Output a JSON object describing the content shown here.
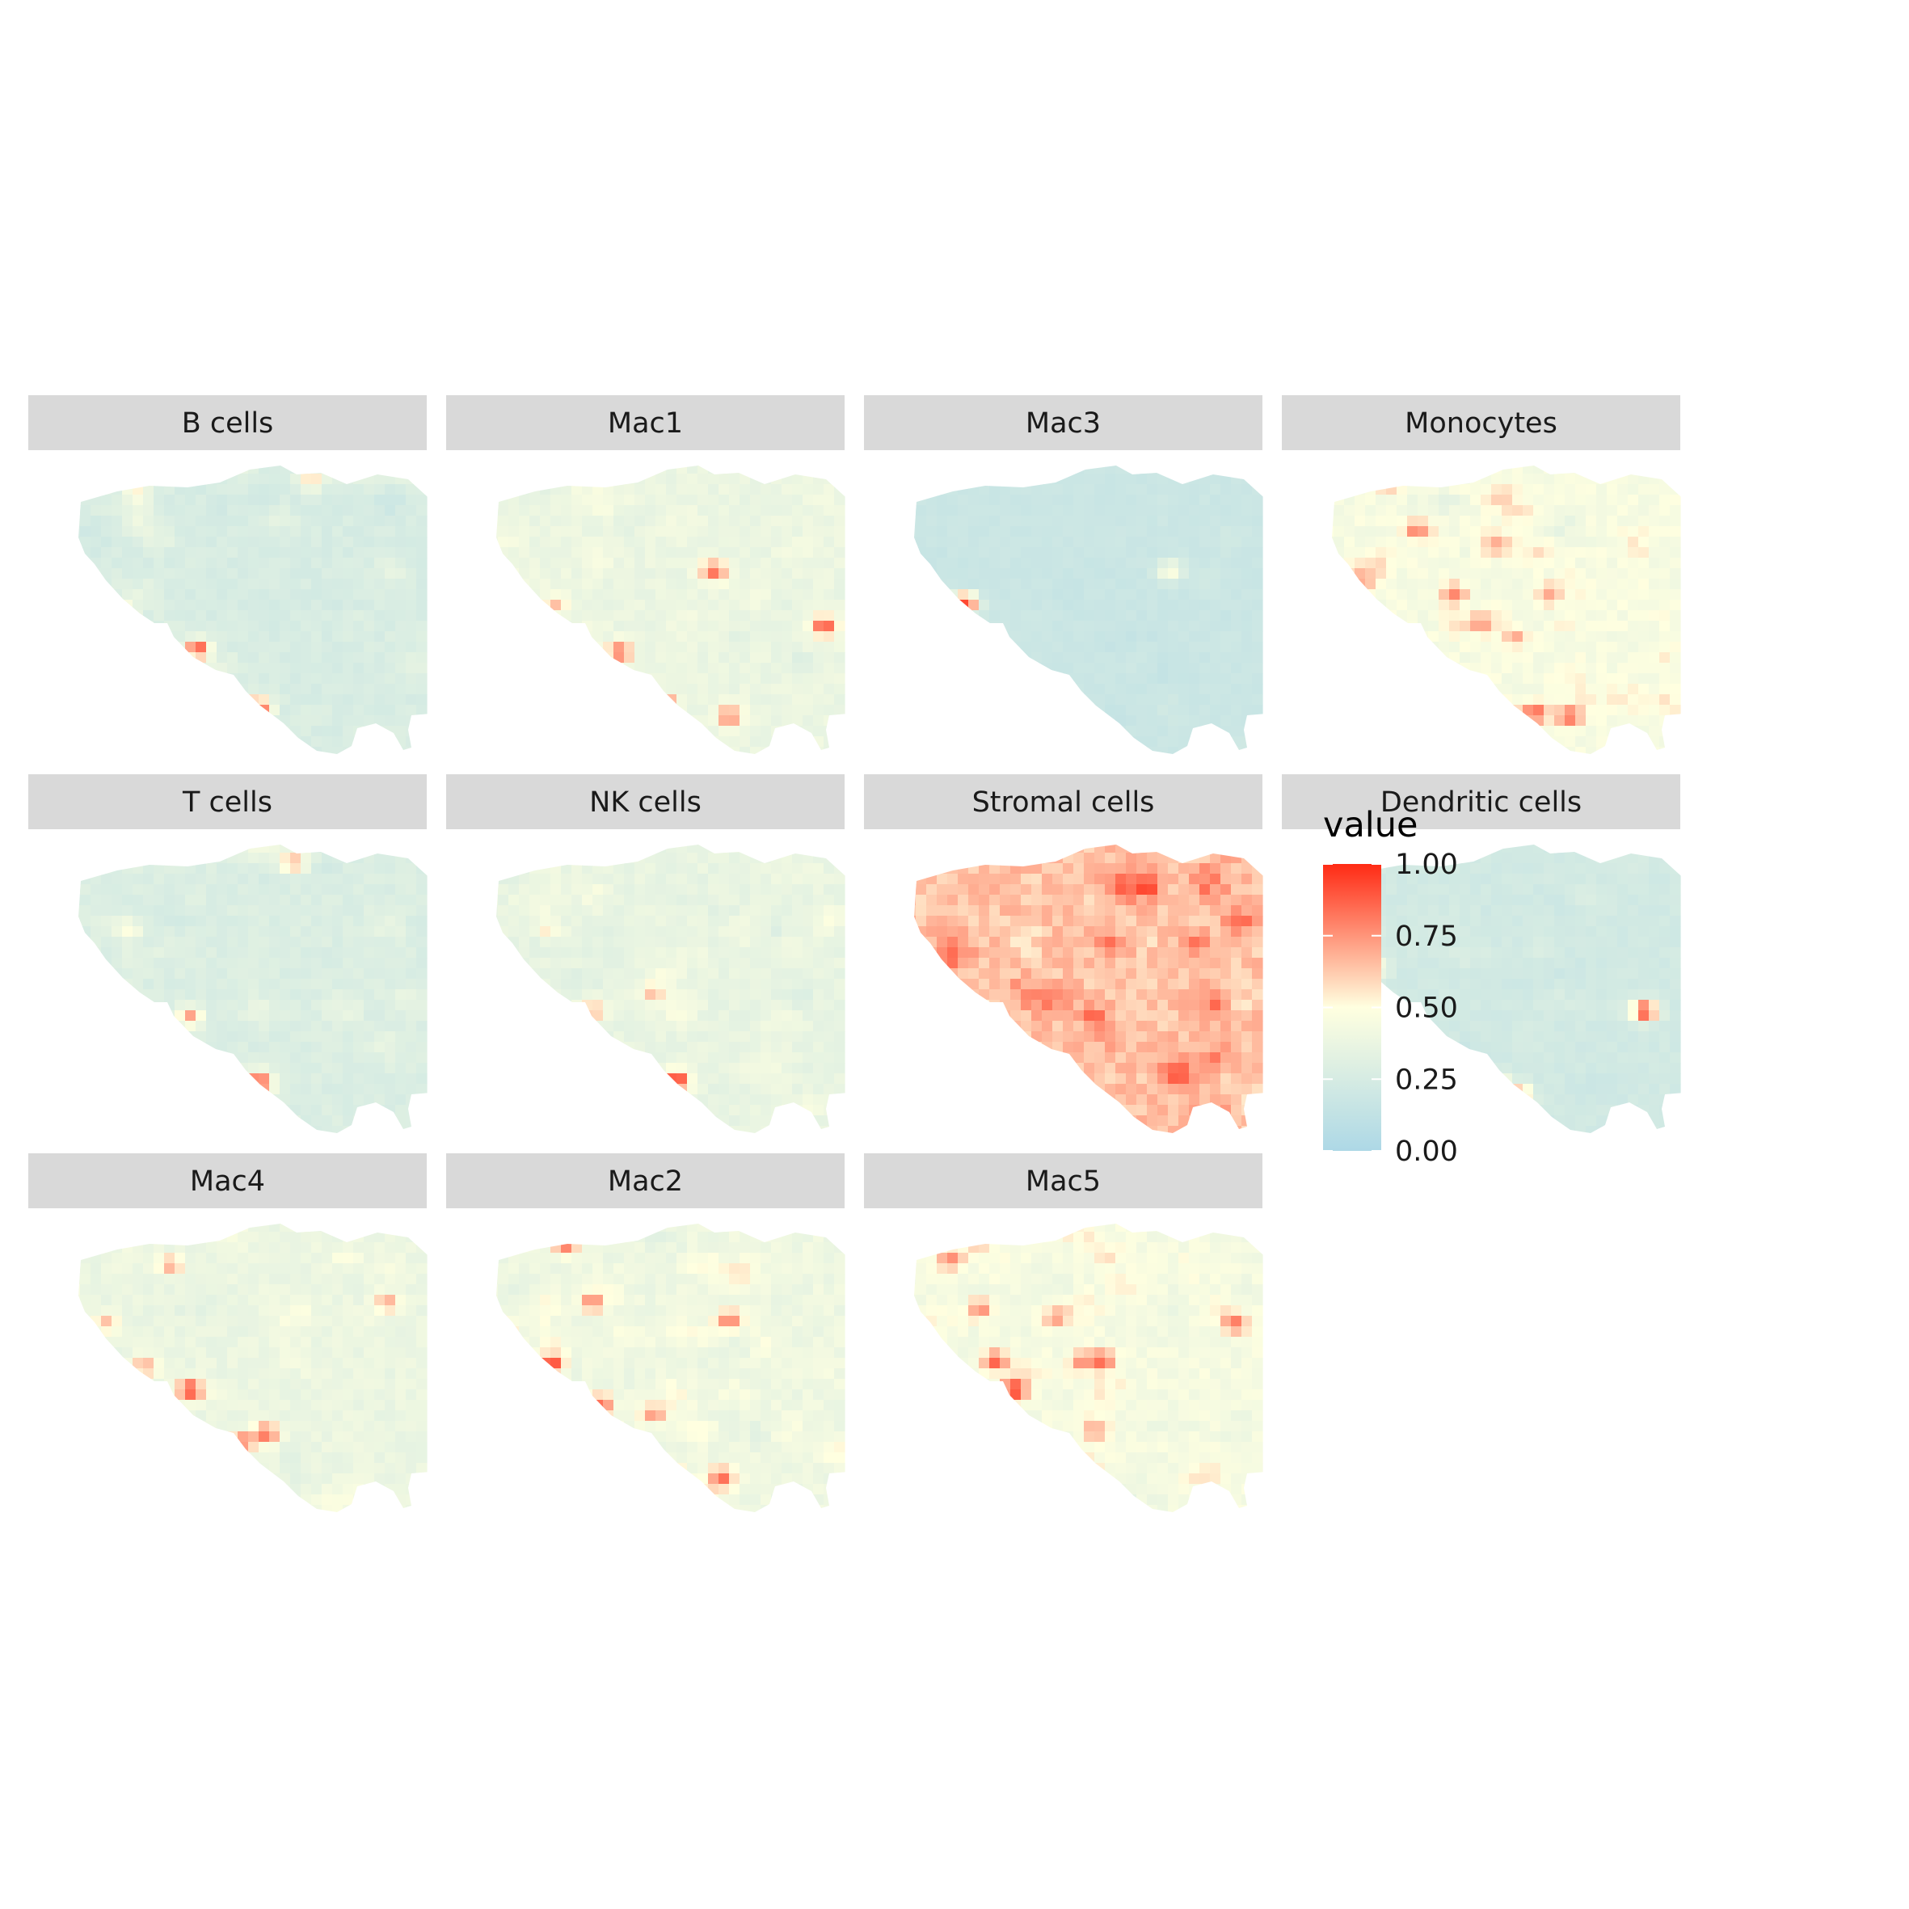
{
  "chart_data": {
    "type": "heatmap",
    "title": "",
    "xlabel": "",
    "ylabel": "",
    "grid": false,
    "legend_position": "right",
    "legend": {
      "title": "value",
      "limits": [
        0,
        1
      ],
      "breaks": [
        "1.00",
        "0.75",
        "0.50",
        "0.25",
        "0.00"
      ],
      "colors": {
        "low": "#add8e6",
        "mid": "#ffffe0",
        "high": "#ff2a14"
      }
    },
    "panels": [
      {
        "name": "B cells",
        "base": 0.26,
        "spread": 0.07,
        "hotspots": [
          [
            0.22,
            0.52,
            0.75
          ],
          [
            0.42,
            0.64,
            0.9
          ],
          [
            0.58,
            0.84,
            0.92
          ],
          [
            0.72,
            0.06,
            0.6
          ],
          [
            0.26,
            0.1,
            0.55
          ]
        ]
      },
      {
        "name": "Mac1",
        "base": 0.38,
        "spread": 0.08,
        "hotspots": [
          [
            0.34,
            0.02,
            0.95
          ],
          [
            0.06,
            0.1,
            0.8
          ],
          [
            0.68,
            0.37,
            0.85
          ],
          [
            0.43,
            0.65,
            0.85
          ],
          [
            0.55,
            0.83,
            0.85
          ],
          [
            0.72,
            0.87,
            0.8
          ],
          [
            0.97,
            0.56,
            0.9
          ],
          [
            0.26,
            0.49,
            0.65
          ]
        ]
      },
      {
        "name": "Mac3",
        "base": 0.18,
        "spread": 0.04,
        "hotspots": [
          [
            0.24,
            0.48,
            0.98
          ],
          [
            0.78,
            0.37,
            0.5
          ]
        ]
      },
      {
        "name": "Monocytes",
        "base": 0.45,
        "spread": 0.1,
        "hotspots": [
          [
            0.25,
            0.05,
            0.98
          ],
          [
            0.58,
            0.9,
            0.95
          ],
          [
            0.64,
            0.86,
            0.88
          ],
          [
            0.73,
            0.87,
            0.85
          ],
          [
            0.33,
            0.23,
            0.8
          ],
          [
            0.43,
            0.45,
            0.78
          ],
          [
            0.5,
            0.55,
            0.75
          ],
          [
            0.18,
            0.4,
            0.72
          ],
          [
            0.59,
            0.6,
            0.7
          ],
          [
            0.54,
            0.28,
            0.7
          ],
          [
            0.68,
            0.45,
            0.7
          ]
        ]
      },
      {
        "name": "T cells",
        "base": 0.28,
        "spread": 0.07,
        "hotspots": [
          [
            0.58,
            0.83,
            0.98
          ],
          [
            0.4,
            0.6,
            0.72
          ],
          [
            0.67,
            0.07,
            0.7
          ],
          [
            0.24,
            0.3,
            0.5
          ]
        ]
      },
      {
        "name": "NK cells",
        "base": 0.36,
        "spread": 0.08,
        "hotspots": [
          [
            0.58,
            0.82,
            0.98
          ],
          [
            0.36,
            0.58,
            0.7
          ],
          [
            0.52,
            0.52,
            0.65
          ],
          [
            0.24,
            0.3,
            0.55
          ]
        ]
      },
      {
        "name": "Stromal cells",
        "base": 0.64,
        "spread": 0.14,
        "hotspots": [
          [
            0.72,
            0.15,
            0.98
          ],
          [
            0.4,
            0.05,
            0.9
          ],
          [
            0.8,
            0.8,
            0.9
          ],
          [
            0.52,
            0.9,
            0.9
          ],
          [
            0.58,
            0.6,
            0.9
          ],
          [
            0.9,
            0.55,
            0.88
          ],
          [
            0.2,
            0.4,
            0.85
          ],
          [
            0.85,
            0.35,
            0.85
          ],
          [
            0.62,
            0.35,
            0.85
          ]
        ]
      },
      {
        "name": "Dendritic cells",
        "base": 0.22,
        "spread": 0.05,
        "hotspots": [
          [
            0.93,
            0.58,
            0.98
          ],
          [
            0.6,
            0.87,
            0.78
          ],
          [
            0.55,
            0.84,
            0.65
          ],
          [
            0.22,
            0.43,
            0.5
          ]
        ]
      },
      {
        "name": "Mac4",
        "base": 0.38,
        "spread": 0.08,
        "hotspots": [
          [
            0.4,
            0.58,
            0.95
          ],
          [
            0.6,
            0.73,
            0.85
          ],
          [
            0.54,
            0.76,
            0.82
          ],
          [
            0.06,
            0.25,
            0.7
          ],
          [
            0.35,
            0.15,
            0.7
          ],
          [
            0.28,
            0.5,
            0.7
          ],
          [
            0.92,
            0.28,
            0.7
          ],
          [
            0.18,
            0.35,
            0.65
          ]
        ]
      },
      {
        "name": "Mac2",
        "base": 0.4,
        "spread": 0.09,
        "hotspots": [
          [
            0.25,
            0.49,
            0.95
          ],
          [
            0.57,
            0.88,
            0.88
          ],
          [
            0.7,
            0.88,
            0.85
          ],
          [
            0.38,
            0.63,
            0.85
          ],
          [
            0.29,
            0.08,
            0.82
          ],
          [
            0.36,
            0.28,
            0.8
          ],
          [
            0.72,
            0.34,
            0.8
          ],
          [
            0.52,
            0.66,
            0.75
          ],
          [
            0.12,
            0.38,
            0.72
          ]
        ]
      },
      {
        "name": "Mac5",
        "base": 0.44,
        "spread": 0.1,
        "hotspots": [
          [
            0.37,
            0.58,
            0.98
          ],
          [
            0.32,
            0.48,
            0.88
          ],
          [
            0.6,
            0.48,
            0.88
          ],
          [
            0.95,
            0.35,
            0.82
          ],
          [
            0.2,
            0.13,
            0.78
          ],
          [
            0.28,
            0.3,
            0.78
          ],
          [
            0.55,
            0.48,
            0.78
          ],
          [
            0.48,
            0.33,
            0.75
          ],
          [
            0.58,
            0.72,
            0.72
          ],
          [
            0.45,
            0.82,
            0.7
          ]
        ]
      }
    ]
  }
}
